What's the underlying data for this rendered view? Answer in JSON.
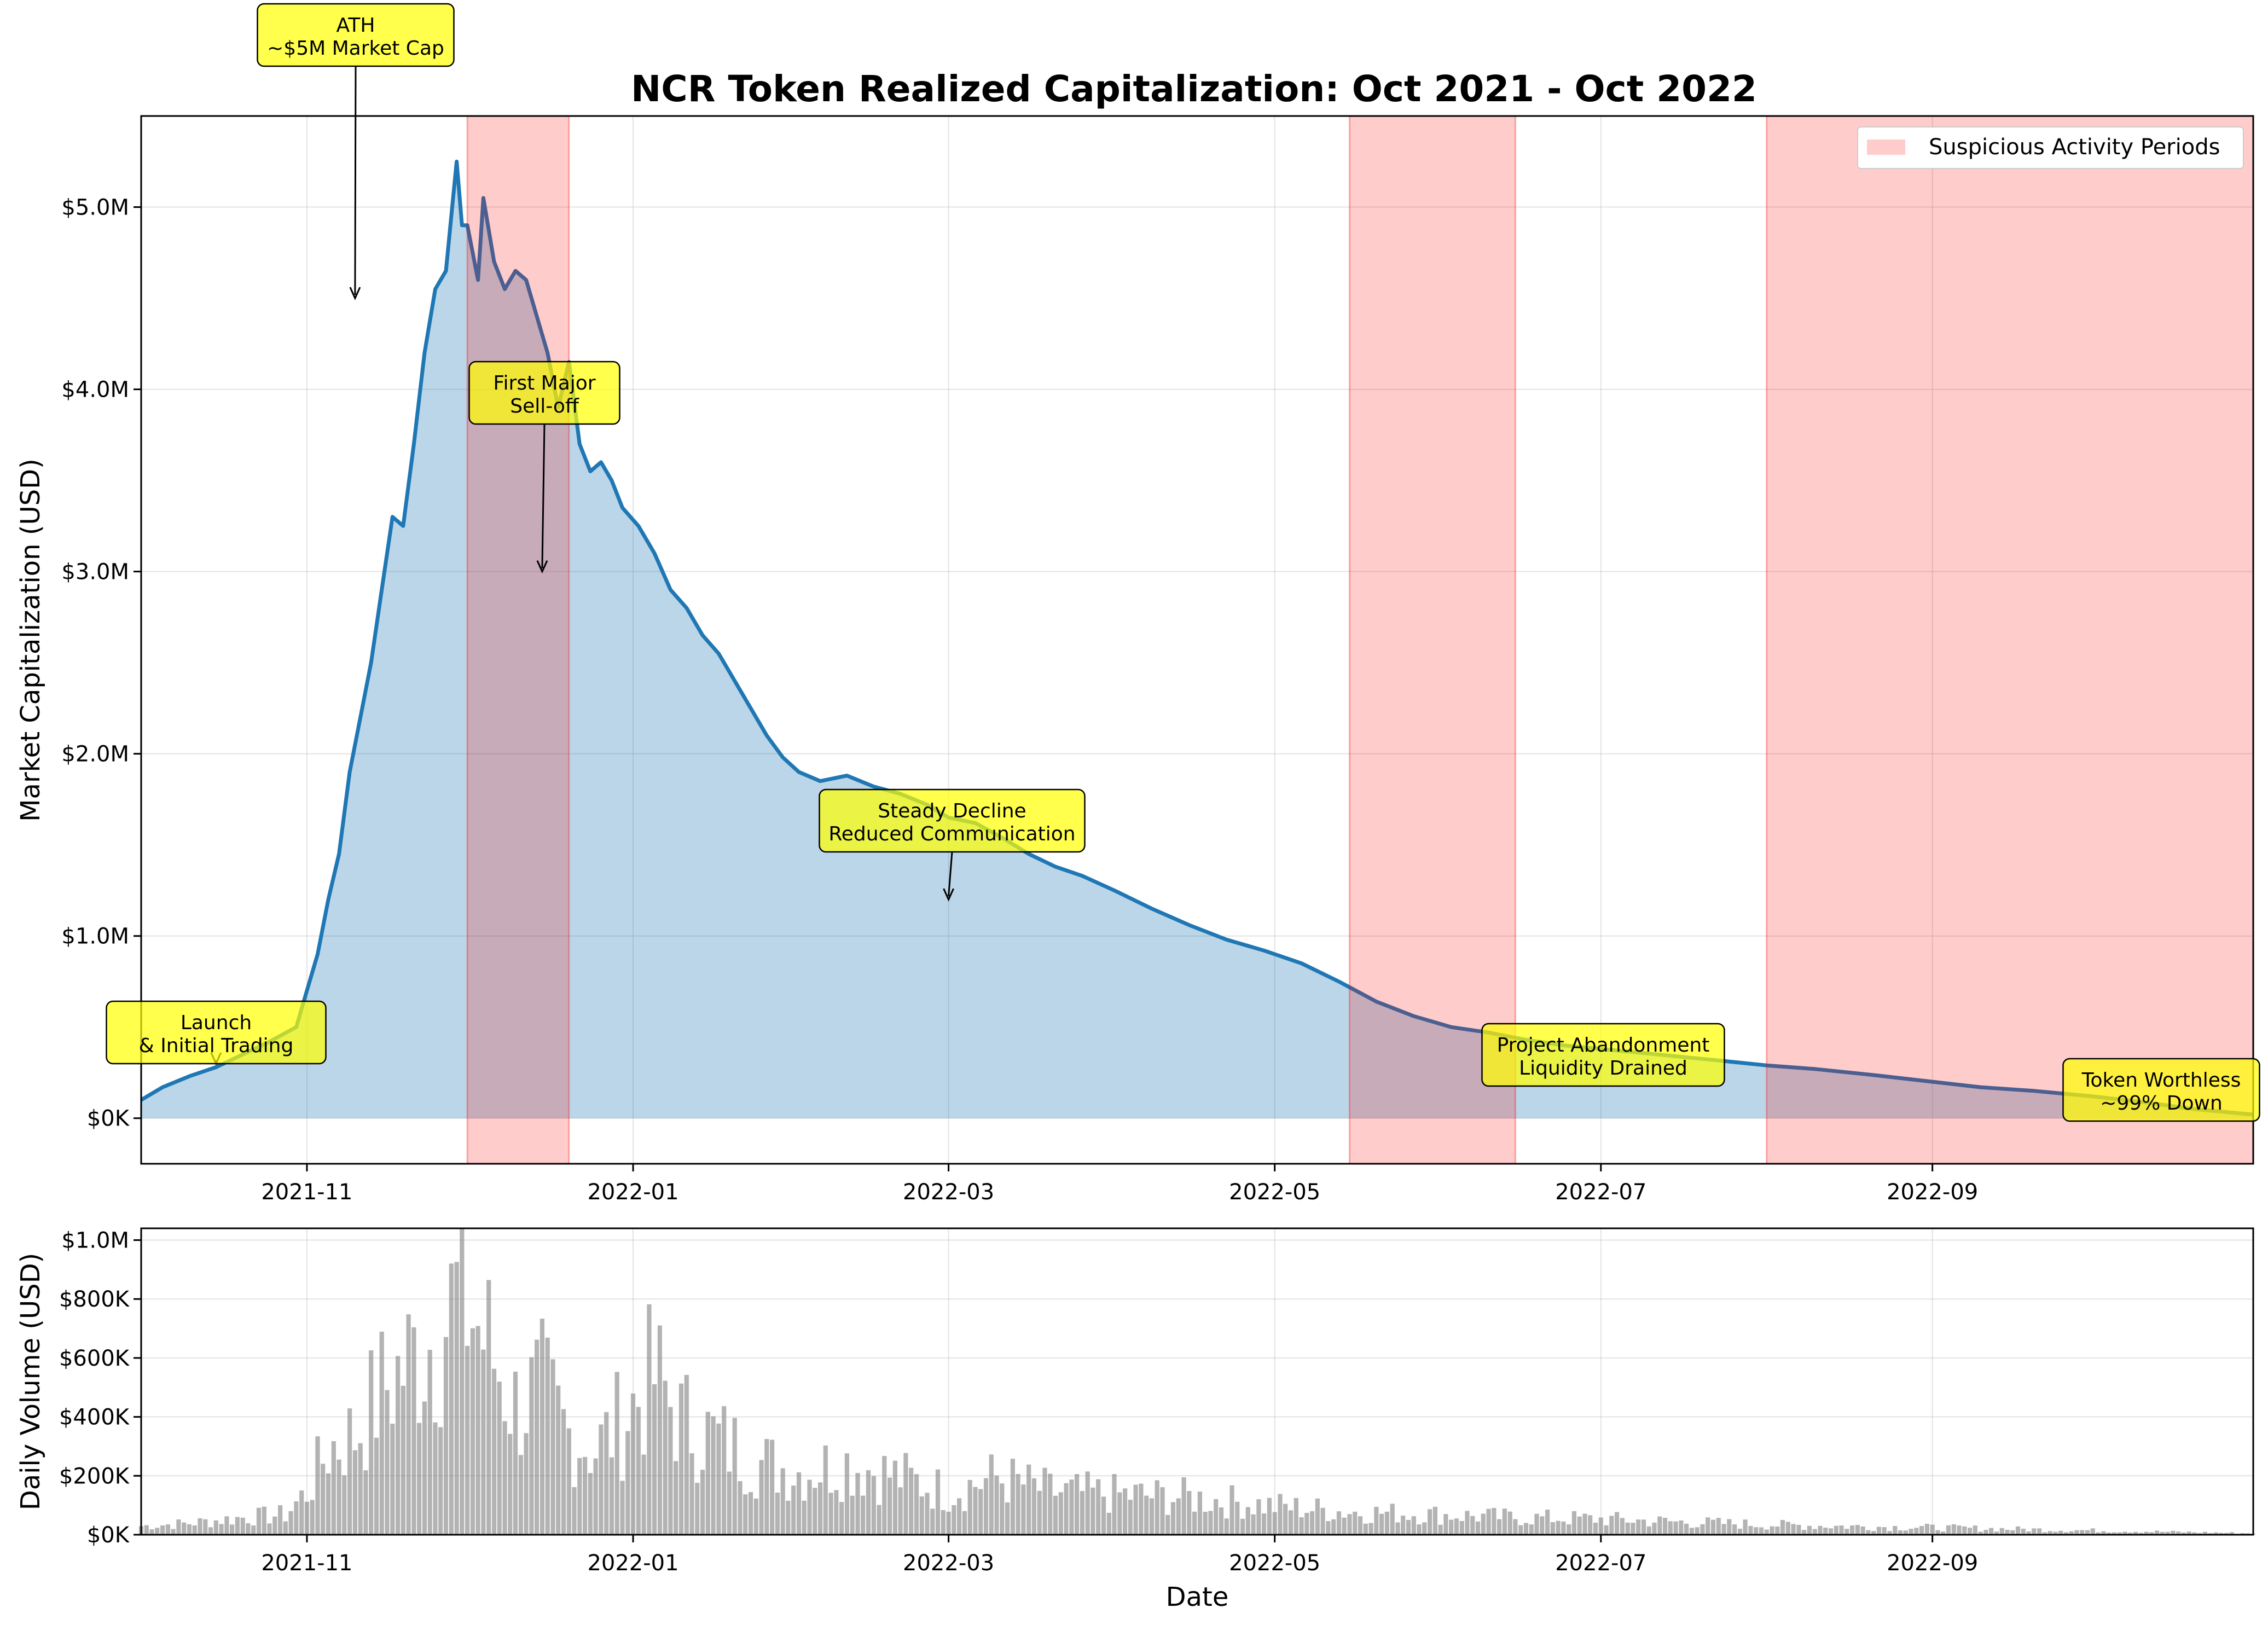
{
  "chart_data": [
    {
      "type": "area",
      "title": "NCR Token Realized Capitalization: Oct 2021 - Oct 2022",
      "xlabel": "",
      "ylabel": "Market Capitalization (USD)",
      "xlim": [
        "2021-10-01",
        "2022-10-31"
      ],
      "ylim": [
        -250000,
        5500000
      ],
      "grid": true,
      "legend_placement": "top-right",
      "x_ticks": [
        "2021-11",
        "2022-01",
        "2022-03",
        "2022-05",
        "2022-07",
        "2022-09"
      ],
      "y_ticks": [
        "$0K",
        "$1.0M",
        "$2.0M",
        "$3.0M",
        "$4.0M",
        "$5.0M"
      ],
      "series": [
        {
          "color": "#1f77b4",
          "fill": "#1f77b4",
          "x": [
            "2021-10-01",
            "2021-10-05",
            "2021-10-10",
            "2021-10-15",
            "2021-10-20",
            "2021-10-25",
            "2021-10-30",
            "2021-11-01",
            "2021-11-03",
            "2021-11-05",
            "2021-11-07",
            "2021-11-09",
            "2021-11-11",
            "2021-11-13",
            "2021-11-15",
            "2021-11-17",
            "2021-11-19",
            "2021-11-21",
            "2021-11-23",
            "2021-11-25",
            "2021-11-27",
            "2021-11-29",
            "2021-11-30",
            "2021-12-01",
            "2021-12-03",
            "2021-12-04",
            "2021-12-06",
            "2021-12-08",
            "2021-12-10",
            "2021-12-12",
            "2021-12-14",
            "2021-12-16",
            "2021-12-18",
            "2021-12-20",
            "2021-12-22",
            "2021-12-24",
            "2021-12-26",
            "2021-12-28",
            "2021-12-30",
            "2022-01-02",
            "2022-01-05",
            "2022-01-08",
            "2022-01-11",
            "2022-01-14",
            "2022-01-17",
            "2022-01-20",
            "2022-01-23",
            "2022-01-26",
            "2022-01-29",
            "2022-02-01",
            "2022-02-05",
            "2022-02-10",
            "2022-02-15",
            "2022-02-20",
            "2022-02-25",
            "2022-03-01",
            "2022-03-06",
            "2022-03-11",
            "2022-03-16",
            "2022-03-21",
            "2022-03-26",
            "2022-04-01",
            "2022-04-08",
            "2022-04-15",
            "2022-04-22",
            "2022-04-29",
            "2022-05-06",
            "2022-05-13",
            "2022-05-20",
            "2022-05-27",
            "2022-06-03",
            "2022-06-10",
            "2022-06-17",
            "2022-06-24",
            "2022-07-01",
            "2022-07-08",
            "2022-07-15",
            "2022-07-22",
            "2022-08-01",
            "2022-08-10",
            "2022-08-20",
            "2022-09-01",
            "2022-09-10",
            "2022-09-20",
            "2022-10-01",
            "2022-10-10",
            "2022-10-20",
            "2022-10-31"
          ],
          "y": [
            100000,
            170000,
            230000,
            280000,
            350000,
            420000,
            500000,
            700000,
            900000,
            1200000,
            1450000,
            1900000,
            2200000,
            2500000,
            2900000,
            3300000,
            3250000,
            3700000,
            4200000,
            4550000,
            4650000,
            5250000,
            4900000,
            4900000,
            4600000,
            5050000,
            4700000,
            4550000,
            4650000,
            4600000,
            4400000,
            4200000,
            3900000,
            4150000,
            3700000,
            3550000,
            3600000,
            3500000,
            3350000,
            3250000,
            3100000,
            2900000,
            2800000,
            2650000,
            2550000,
            2400000,
            2250000,
            2100000,
            1980000,
            1900000,
            1850000,
            1880000,
            1820000,
            1780000,
            1720000,
            1650000,
            1620000,
            1540000,
            1450000,
            1380000,
            1330000,
            1250000,
            1150000,
            1060000,
            980000,
            920000,
            850000,
            750000,
            640000,
            560000,
            500000,
            470000,
            430000,
            400000,
            380000,
            360000,
            340000,
            320000,
            290000,
            270000,
            240000,
            200000,
            170000,
            150000,
            120000,
            90000,
            50000,
            20000
          ]
        }
      ],
      "shaded_ranges": [
        {
          "start": "2021-12-01",
          "end": "2021-12-20",
          "color": "#ff0000",
          "alpha": 0.2
        },
        {
          "start": "2022-05-15",
          "end": "2022-06-15",
          "color": "#ff0000",
          "alpha": 0.2
        },
        {
          "start": "2022-08-01",
          "end": "2022-10-31",
          "color": "#ff0000",
          "alpha": 0.2
        }
      ],
      "legend": [
        {
          "label": "Suspicious Activity Periods",
          "color": "#ffcccc"
        }
      ],
      "annotations": [
        {
          "lines": [
            "ATH",
            "~$5M Market Cap"
          ],
          "x": "2021-11-10",
          "y": 4500000,
          "arrow": true
        },
        {
          "lines": [
            "First Major",
            "Sell-off"
          ],
          "x": "2021-12-15",
          "y": 3000000,
          "arrow": true
        },
        {
          "lines": [
            "Launch",
            "& Initial Trading"
          ],
          "x": "2021-10-15",
          "y": 300000,
          "arrow": true
        },
        {
          "lines": [
            "Steady Decline",
            "Reduced Communication"
          ],
          "x": "2022-03-01",
          "y": 1200000,
          "arrow": true
        },
        {
          "lines": [
            "Project Abandonment",
            "Liquidity Drained"
          ],
          "x": "2022-07-01",
          "y": 450000,
          "arrow": false
        },
        {
          "lines": [
            "Token Worthless",
            "~99% Down"
          ],
          "x": "2022-10-10",
          "y": 80000,
          "arrow": false
        }
      ]
    },
    {
      "type": "bar",
      "title": "",
      "xlabel": "Date",
      "ylabel": "Daily Volume (USD)",
      "xlim": [
        "2021-10-01",
        "2022-10-31"
      ],
      "ylim": [
        0,
        1040000
      ],
      "grid": true,
      "x_ticks": [
        "2021-11",
        "2022-01",
        "2022-03",
        "2022-05",
        "2022-07",
        "2022-09"
      ],
      "y_ticks": [
        "$0K",
        "$200K",
        "$400K",
        "$600K",
        "$800K",
        "$1.0M"
      ],
      "series": [
        {
          "color": "#808080",
          "x": [
            "2021-10-01",
            "2021-10-10",
            "2021-10-20",
            "2021-10-28",
            "2021-11-01",
            "2021-11-05",
            "2021-11-10",
            "2021-11-15",
            "2021-11-20",
            "2021-11-25",
            "2021-11-30",
            "2021-12-05",
            "2021-12-10",
            "2021-12-15",
            "2021-12-20",
            "2021-12-25",
            "2021-12-30",
            "2022-01-05",
            "2022-01-10",
            "2022-01-15",
            "2022-01-20",
            "2022-01-25",
            "2022-02-01",
            "2022-02-10",
            "2022-02-20",
            "2022-03-01",
            "2022-03-10",
            "2022-03-20",
            "2022-04-01",
            "2022-04-15",
            "2022-05-01",
            "2022-05-15",
            "2022-06-01",
            "2022-06-15",
            "2022-07-01",
            "2022-07-15",
            "2022-08-01",
            "2022-08-15",
            "2022-09-01",
            "2022-09-15",
            "2022-10-01",
            "2022-10-15",
            "2022-10-31"
          ],
          "values": [
            30000,
            40000,
            60000,
            70000,
            150000,
            300000,
            350000,
            500000,
            600000,
            700000,
            850000,
            650000,
            450000,
            500000,
            350000,
            300000,
            400000,
            550000,
            400000,
            350000,
            300000,
            250000,
            220000,
            250000,
            200000,
            150000,
            200000,
            150000,
            140000,
            130000,
            100000,
            80000,
            70000,
            60000,
            55000,
            45000,
            35000,
            30000,
            25000,
            20000,
            15000,
            10000,
            5000
          ]
        }
      ]
    }
  ]
}
